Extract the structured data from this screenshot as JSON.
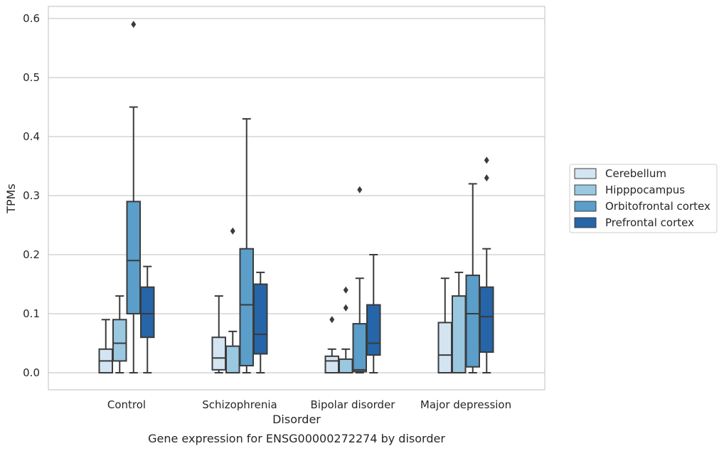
{
  "chart_data": {
    "type": "box",
    "title": "",
    "caption": "Gene expression for ENSG00000272274 by disorder",
    "xlabel": "Disorder",
    "ylabel": "TPMs",
    "ylim": [
      -0.028,
      0.62
    ],
    "yticks": [
      "0.0",
      "0.1",
      "0.2",
      "0.3",
      "0.4",
      "0.5",
      "0.6"
    ],
    "grid": "horizontal",
    "legend_position": "right",
    "categories": [
      "Control",
      "Schizophrenia",
      "Bipolar disorder",
      "Major depression"
    ],
    "series": [
      {
        "name": "Cerebellum",
        "color": "#d3e4f3",
        "boxes": [
          {
            "min": 0.0,
            "q1": 0.0,
            "median": 0.02,
            "q3": 0.04,
            "max": 0.09,
            "outliers": []
          },
          {
            "min": 0.0,
            "q1": 0.005,
            "median": 0.025,
            "q3": 0.06,
            "max": 0.13,
            "outliers": []
          },
          {
            "min": 0.0,
            "q1": 0.0,
            "median": 0.02,
            "q3": 0.028,
            "max": 0.04,
            "outliers": [
              0.09
            ]
          },
          {
            "min": 0.0,
            "q1": 0.0,
            "median": 0.03,
            "q3": 0.085,
            "max": 0.16,
            "outliers": []
          }
        ]
      },
      {
        "name": "Hipppocampus",
        "color": "#9ac8e0",
        "boxes": [
          {
            "min": 0.0,
            "q1": 0.02,
            "median": 0.05,
            "q3": 0.09,
            "max": 0.13,
            "outliers": []
          },
          {
            "min": 0.0,
            "q1": 0.0,
            "median": 0.0,
            "q3": 0.045,
            "max": 0.07,
            "outliers": [
              0.24
            ]
          },
          {
            "min": 0.0,
            "q1": 0.0,
            "median": 0.0,
            "q3": 0.023,
            "max": 0.04,
            "outliers": [
              0.11,
              0.14
            ]
          },
          {
            "min": 0.0,
            "q1": 0.0,
            "median": 0.0,
            "q3": 0.13,
            "max": 0.17,
            "outliers": []
          }
        ]
      },
      {
        "name": "Orbitofrontal cortex",
        "color": "#5a9ec9",
        "boxes": [
          {
            "min": 0.0,
            "q1": 0.1,
            "median": 0.19,
            "q3": 0.29,
            "max": 0.45,
            "outliers": [
              0.59
            ]
          },
          {
            "min": 0.0,
            "q1": 0.012,
            "median": 0.115,
            "q3": 0.21,
            "max": 0.43,
            "outliers": []
          },
          {
            "min": 0.0,
            "q1": 0.002,
            "median": 0.005,
            "q3": 0.083,
            "max": 0.16,
            "outliers": [
              0.31
            ]
          },
          {
            "min": 0.0,
            "q1": 0.01,
            "median": 0.1,
            "q3": 0.165,
            "max": 0.32,
            "outliers": []
          }
        ]
      },
      {
        "name": "Prefrontal cortex",
        "color": "#2565a8",
        "boxes": [
          {
            "min": 0.0,
            "q1": 0.06,
            "median": 0.1,
            "q3": 0.145,
            "max": 0.18,
            "outliers": []
          },
          {
            "min": 0.0,
            "q1": 0.032,
            "median": 0.065,
            "q3": 0.15,
            "max": 0.17,
            "outliers": []
          },
          {
            "min": 0.0,
            "q1": 0.03,
            "median": 0.05,
            "q3": 0.115,
            "max": 0.2,
            "outliers": []
          },
          {
            "min": 0.0,
            "q1": 0.035,
            "median": 0.095,
            "q3": 0.145,
            "max": 0.21,
            "outliers": [
              0.33,
              0.36
            ]
          }
        ]
      }
    ]
  }
}
